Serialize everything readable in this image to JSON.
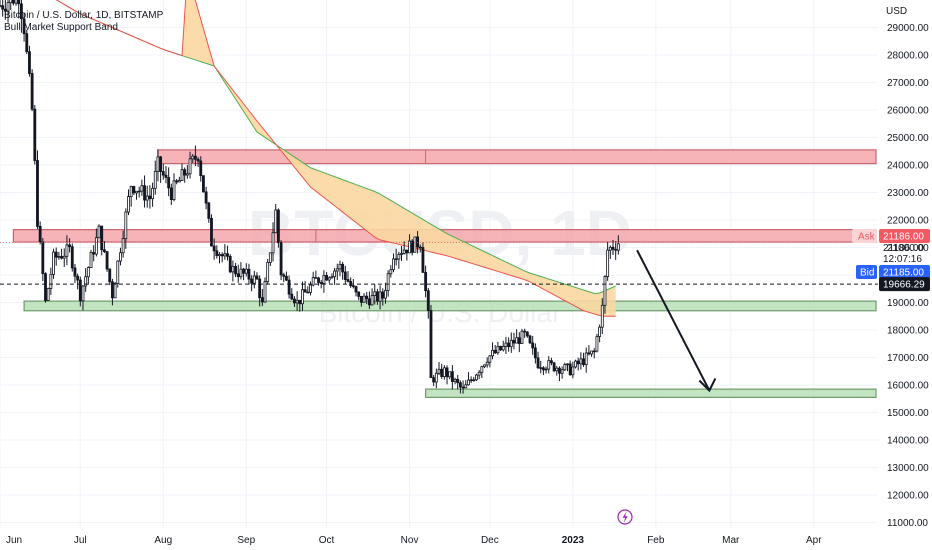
{
  "header": {
    "symbol_line": "Bitcoin / U.S. Dollar, 1D, BITSTAMP",
    "indicator": "Bull Market Support Band"
  },
  "watermark": {
    "ticker": "BTCUSD, 1D",
    "name": "Bitcoin / U.S. Dollar"
  },
  "price_axis": {
    "currency": "USD",
    "ticks": [
      29000,
      28000,
      27000,
      26000,
      25000,
      24000,
      23000,
      22000,
      21000,
      20000,
      19000,
      18000,
      17000,
      16000,
      15000,
      14000,
      13000,
      12000,
      11000
    ]
  },
  "price_labels": {
    "ask_label": "Ask",
    "ask_value": "21186.00",
    "last_value": "21186.00",
    "countdown": "12:07:16",
    "bid_label": "Bid",
    "bid_value": "21185.00",
    "hline_value": "19666.29"
  },
  "time_axis": [
    "Jun",
    "Jul",
    "Aug",
    "Sep",
    "Oct",
    "Nov",
    "Dec",
    "2023",
    "Feb",
    "Mar",
    "Apr"
  ],
  "colors": {
    "up": "#131722",
    "resistance_fill": "#f4a7ad",
    "resistance_edge": "#c7666e",
    "support_fill": "#b9dfb6",
    "support_edge": "#6f9a6d",
    "band_fill": "#fbd7a1",
    "band_upper": "#4caf50",
    "band_lower": "#ef5350",
    "ask": "#f05a63",
    "bid": "#2962ff"
  },
  "chart_data": {
    "type": "candlestick",
    "title": "Bitcoin / U.S. Dollar, 1D, BITSTAMP",
    "ylabel": "USD",
    "ylim": [
      10800,
      30000
    ],
    "x_range": [
      "2022-06-01",
      "2023-04-25"
    ],
    "price_path": [
      [
        "2022-06-01",
        29800
      ],
      [
        "2022-06-08",
        30200
      ],
      [
        "2022-06-10",
        29000
      ],
      [
        "2022-06-13",
        26000
      ],
      [
        "2022-06-15",
        22000
      ],
      [
        "2022-06-18",
        19000
      ],
      [
        "2022-06-21",
        20600
      ],
      [
        "2022-06-27",
        20900
      ],
      [
        "2022-07-01",
        19300
      ],
      [
        "2022-07-08",
        21600
      ],
      [
        "2022-07-13",
        19300
      ],
      [
        "2022-07-20",
        23300
      ],
      [
        "2022-07-27",
        22800
      ],
      [
        "2022-07-30",
        24000
      ],
      [
        "2022-08-04",
        23000
      ],
      [
        "2022-08-14",
        24400
      ],
      [
        "2022-08-19",
        21200
      ],
      [
        "2022-08-27",
        20200
      ],
      [
        "2022-09-05",
        19800
      ],
      [
        "2022-09-07",
        18900
      ],
      [
        "2022-09-12",
        22300
      ],
      [
        "2022-09-14",
        20100
      ],
      [
        "2022-09-20",
        19000
      ],
      [
        "2022-09-27",
        19800
      ],
      [
        "2022-10-06",
        20300
      ],
      [
        "2022-10-13",
        19100
      ],
      [
        "2022-10-22",
        19200
      ],
      [
        "2022-10-26",
        20800
      ],
      [
        "2022-11-05",
        21200
      ],
      [
        "2022-11-08",
        18500
      ],
      [
        "2022-11-09",
        16200
      ],
      [
        "2022-11-14",
        16500
      ],
      [
        "2022-11-21",
        15800
      ],
      [
        "2022-11-30",
        17000
      ],
      [
        "2022-12-14",
        17800
      ],
      [
        "2022-12-19",
        16800
      ],
      [
        "2022-12-31",
        16550
      ],
      [
        "2023-01-09",
        17200
      ],
      [
        "2023-01-12",
        18800
      ],
      [
        "2023-01-14",
        20900
      ],
      [
        "2023-01-18",
        21186
      ]
    ],
    "band_upper": [
      [
        "2022-06-01",
        31200
      ],
      [
        "2022-07-01",
        29500
      ],
      [
        "2022-08-01",
        28200
      ],
      [
        "2022-08-20",
        27600
      ],
      [
        "2022-09-05",
        25200
      ],
      [
        "2022-09-25",
        23900
      ],
      [
        "2022-10-20",
        23000
      ],
      [
        "2022-11-15",
        21500
      ],
      [
        "2022-12-15",
        20100
      ],
      [
        "2023-01-10",
        19300
      ],
      [
        "2023-01-17",
        19600
      ]
    ],
    "band_lower": [
      [
        "2022-08-10",
        31000
      ],
      [
        "2022-08-20",
        27600
      ],
      [
        "2022-09-05",
        25600
      ],
      [
        "2022-09-25",
        23200
      ],
      [
        "2022-10-20",
        21300
      ],
      [
        "2022-11-15",
        20700
      ],
      [
        "2022-12-15",
        19800
      ],
      [
        "2023-01-05",
        18700
      ],
      [
        "2023-01-12",
        18500
      ],
      [
        "2023-01-17",
        18500
      ]
    ],
    "zones": [
      {
        "kind": "resistance",
        "start": "2022-07-30",
        "end": "2023-04-25",
        "low": 24050,
        "high": 24550
      },
      {
        "kind": "resistance",
        "start": "2022-06-06",
        "end": "2023-04-25",
        "low": 21200,
        "high": 21650
      },
      {
        "kind": "support",
        "start": "2022-06-10",
        "end": "2023-04-25",
        "low": 18700,
        "high": 19050
      },
      {
        "kind": "support",
        "start": "2022-11-07",
        "end": "2023-04-25",
        "low": 15550,
        "high": 15850
      }
    ],
    "projection": {
      "from": [
        "2023-01-25",
        20900
      ],
      "to": [
        "2023-02-21",
        15800
      ]
    },
    "horizontal_line": 19666.29,
    "last_price": 21186
  }
}
